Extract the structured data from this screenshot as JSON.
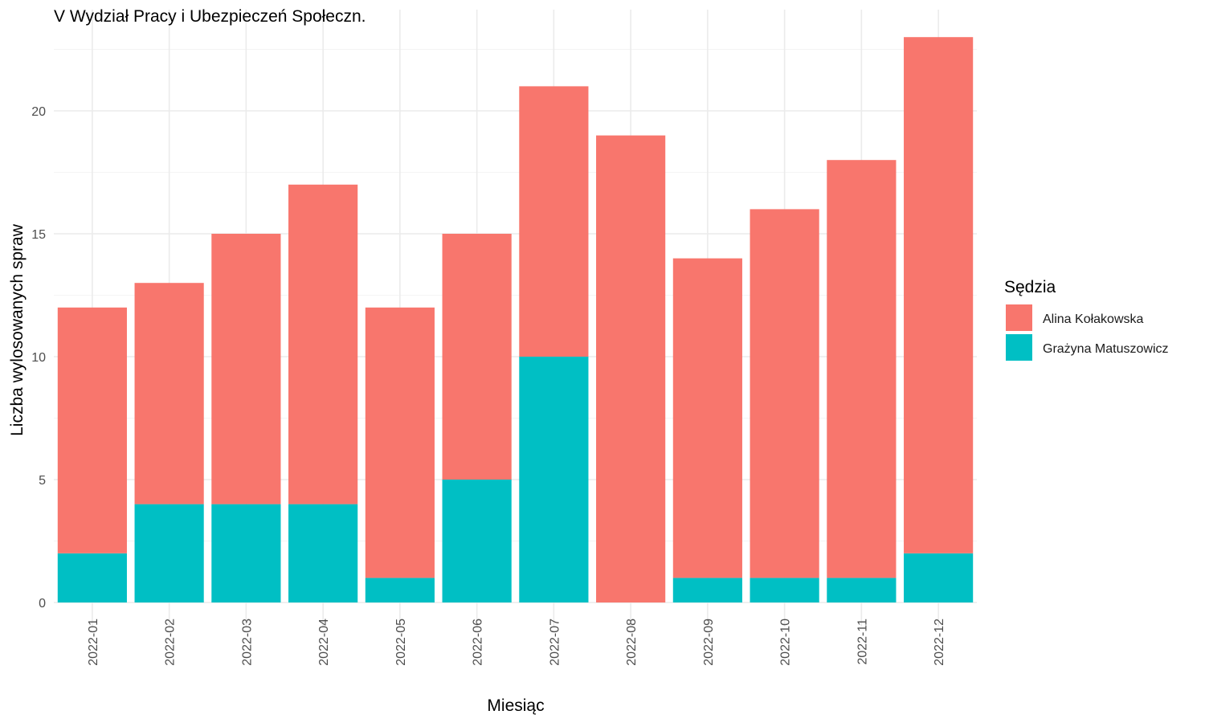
{
  "chart_data": {
    "type": "bar",
    "stacked": true,
    "title": "V Wydział Pracy i Ubezpieczeń Społeczn.",
    "xlabel": "Miesiąc",
    "ylabel": "Liczba wylosowanych spraw",
    "categories": [
      "2022-01",
      "2022-02",
      "2022-03",
      "2022-04",
      "2022-05",
      "2022-06",
      "2022-07",
      "2022-08",
      "2022-09",
      "2022-10",
      "2022-11",
      "2022-12"
    ],
    "series": [
      {
        "name": "Grażyna Matuszowicz",
        "color": "#00BFC4",
        "values": [
          2,
          4,
          4,
          4,
          1,
          5,
          10,
          0,
          1,
          1,
          1,
          2
        ]
      },
      {
        "name": "Alina Kołakowska",
        "color": "#F8766D",
        "values": [
          10,
          9,
          11,
          13,
          11,
          10,
          11,
          19,
          13,
          15,
          17,
          21
        ]
      }
    ],
    "ylim": [
      0,
      23.5
    ],
    "yticks": [
      0,
      5,
      10,
      15,
      20
    ],
    "grid": true,
    "legend": {
      "title": "Sędzia",
      "position": "right",
      "entries": [
        {
          "label": "Alina Kołakowska",
          "color": "#F8766D"
        },
        {
          "label": "Grażyna Matuszowicz",
          "color": "#00BFC4"
        }
      ]
    }
  }
}
